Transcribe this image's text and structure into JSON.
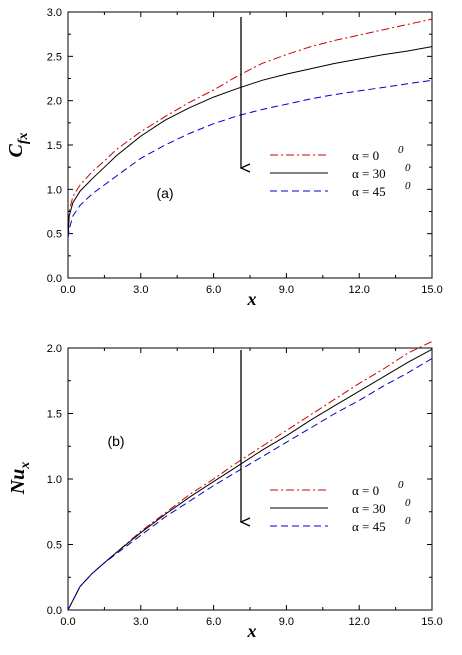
{
  "chart_data": [
    {
      "type": "line",
      "panel_label": "(a)",
      "xlabel": "x",
      "ylabel": {
        "base": "C",
        "sub": "fx"
      },
      "xlim": [
        0,
        15
      ],
      "ylim": [
        0,
        3
      ],
      "x_ticks": [
        "0.0",
        "3.0",
        "6.0",
        "9.0",
        "12.0",
        "15.0"
      ],
      "y_ticks": [
        "0.0",
        "0.5",
        "1.0",
        "1.5",
        "2.0",
        "2.5",
        "3.0"
      ],
      "grid": false,
      "legend_position": "right-middle",
      "annotation": "downward arrow at x ≈ 7.2 indicating decrease with increasing α",
      "series": [
        {
          "name": "α = 0",
          "sup": "0",
          "color": "#cc0000",
          "style": "dash-dot",
          "x": [
            0,
            0.05,
            0.2,
            0.5,
            1,
            1.5,
            2,
            3,
            4,
            5,
            6,
            7,
            8,
            9,
            10,
            11,
            12,
            13,
            14,
            15
          ],
          "y": [
            0.45,
            0.75,
            0.92,
            1.05,
            1.2,
            1.32,
            1.45,
            1.65,
            1.82,
            1.98,
            2.12,
            2.28,
            2.42,
            2.52,
            2.61,
            2.68,
            2.74,
            2.8,
            2.86,
            2.92
          ]
        },
        {
          "name": "α = 30",
          "sup": "0",
          "color": "#000000",
          "style": "solid",
          "x": [
            0,
            0.05,
            0.2,
            0.5,
            1,
            1.5,
            2,
            3,
            4,
            5,
            6,
            7,
            8,
            9,
            10,
            11,
            12,
            13,
            14,
            15
          ],
          "y": [
            0.45,
            0.7,
            0.85,
            0.98,
            1.12,
            1.25,
            1.38,
            1.6,
            1.78,
            1.92,
            2.04,
            2.14,
            2.23,
            2.3,
            2.36,
            2.42,
            2.47,
            2.52,
            2.56,
            2.61
          ]
        },
        {
          "name": "α = 45",
          "sup": "0",
          "color": "#0000cc",
          "style": "dashed",
          "x": [
            0,
            0.05,
            0.2,
            0.5,
            1,
            1.5,
            2,
            3,
            4,
            5,
            6,
            7,
            8,
            9,
            10,
            11,
            12,
            13,
            14,
            15
          ],
          "y": [
            0.45,
            0.55,
            0.7,
            0.82,
            0.95,
            1.05,
            1.15,
            1.35,
            1.5,
            1.63,
            1.74,
            1.83,
            1.9,
            1.96,
            2.02,
            2.07,
            2.11,
            2.15,
            2.19,
            2.23
          ]
        }
      ]
    },
    {
      "type": "line",
      "panel_label": "(b)",
      "xlabel": "x",
      "ylabel": {
        "base": "Nu",
        "sub": "x"
      },
      "xlim": [
        0,
        15
      ],
      "ylim": [
        0,
        2
      ],
      "x_ticks": [
        "0.0",
        "3.0",
        "6.0",
        "9.0",
        "12.0",
        "15.0"
      ],
      "y_ticks": [
        "0.0",
        "0.5",
        "1.0",
        "1.5",
        "2.0"
      ],
      "grid": false,
      "legend_position": "right-middle",
      "annotation": "downward arrow at x ≈ 7.2 indicating decrease with increasing α",
      "series": [
        {
          "name": "α = 0",
          "sup": "0",
          "color": "#cc0000",
          "style": "dash-dot",
          "x": [
            0,
            0.5,
            1,
            1.5,
            2,
            3,
            4,
            5,
            6,
            7,
            8,
            9,
            10,
            11,
            12,
            13,
            14,
            15
          ],
          "y": [
            0,
            0.18,
            0.28,
            0.36,
            0.44,
            0.6,
            0.74,
            0.88,
            1.0,
            1.13,
            1.25,
            1.37,
            1.49,
            1.61,
            1.73,
            1.84,
            1.96,
            2.05
          ]
        },
        {
          "name": "α = 30",
          "sup": "0",
          "color": "#000000",
          "style": "solid",
          "x": [
            0,
            0.5,
            1,
            1.5,
            2,
            3,
            4,
            5,
            6,
            7,
            8,
            9,
            10,
            11,
            12,
            13,
            14,
            15
          ],
          "y": [
            0,
            0.18,
            0.28,
            0.36,
            0.44,
            0.59,
            0.73,
            0.86,
            0.98,
            1.1,
            1.22,
            1.33,
            1.45,
            1.56,
            1.67,
            1.78,
            1.89,
            1.99
          ]
        },
        {
          "name": "α = 45",
          "sup": "0",
          "color": "#0000cc",
          "style": "dashed",
          "x": [
            0,
            0.5,
            1,
            1.5,
            2,
            3,
            4,
            5,
            6,
            7,
            8,
            9,
            10,
            11,
            12,
            13,
            14,
            15
          ],
          "y": [
            0,
            0.18,
            0.28,
            0.36,
            0.43,
            0.57,
            0.71,
            0.83,
            0.95,
            1.06,
            1.17,
            1.28,
            1.39,
            1.5,
            1.6,
            1.71,
            1.81,
            1.92
          ]
        }
      ]
    }
  ]
}
